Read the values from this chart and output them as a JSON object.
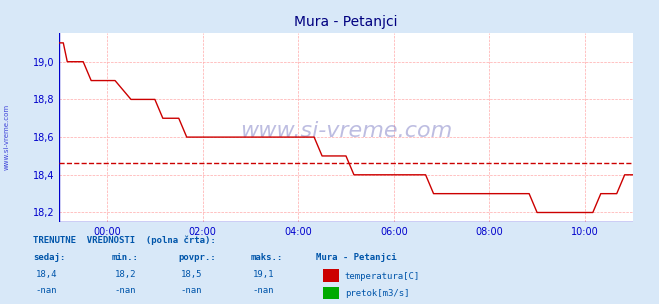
{
  "title": "Mura - Petanjci",
  "bg_color": "#d8e8f8",
  "plot_bg_color": "#ffffff",
  "grid_color": "#ffaaaa",
  "title_color": "#000080",
  "axis_color": "#0000cc",
  "text_color": "#0055aa",
  "watermark": "www.si-vreme.com",
  "ylim": [
    18.15,
    19.15
  ],
  "yticks": [
    18.2,
    18.4,
    18.6,
    18.8,
    19.0
  ],
  "xlim": [
    0,
    288
  ],
  "xtick_positions": [
    24,
    72,
    120,
    168,
    216,
    264
  ],
  "xtick_labels": [
    "00:00",
    "02:00",
    "04:00",
    "06:00",
    "08:00",
    "10:00"
  ],
  "avg_line_y": 18.463,
  "avg_line_color": "#cc0000",
  "line_color": "#cc0000",
  "temp_data_x": [
    0,
    2,
    4,
    6,
    8,
    10,
    12,
    16,
    20,
    24,
    28,
    36,
    44,
    48,
    52,
    56,
    60,
    64,
    68,
    72,
    76,
    80,
    84,
    88,
    92,
    96,
    100,
    108,
    116,
    120,
    124,
    128,
    132,
    136,
    140,
    144,
    148,
    152,
    156,
    160,
    164,
    168,
    172,
    176,
    180,
    184,
    188,
    192,
    196,
    200,
    204,
    208,
    212,
    216,
    220,
    224,
    228,
    232,
    236,
    240,
    244,
    248,
    252,
    256,
    260,
    264,
    268,
    272,
    276,
    280,
    284,
    288
  ],
  "temp_data_y": [
    19.1,
    19.1,
    19.0,
    19.0,
    19.0,
    19.0,
    19.0,
    18.9,
    18.9,
    18.9,
    18.9,
    18.8,
    18.8,
    18.8,
    18.7,
    18.7,
    18.7,
    18.6,
    18.6,
    18.6,
    18.6,
    18.6,
    18.6,
    18.6,
    18.6,
    18.6,
    18.6,
    18.6,
    18.6,
    18.6,
    18.6,
    18.6,
    18.5,
    18.5,
    18.5,
    18.5,
    18.4,
    18.4,
    18.4,
    18.4,
    18.4,
    18.4,
    18.4,
    18.4,
    18.4,
    18.4,
    18.3,
    18.3,
    18.3,
    18.3,
    18.3,
    18.3,
    18.3,
    18.3,
    18.3,
    18.3,
    18.3,
    18.3,
    18.3,
    18.2,
    18.2,
    18.2,
    18.2,
    18.2,
    18.2,
    18.2,
    18.2,
    18.3,
    18.3,
    18.3,
    18.4,
    18.4
  ],
  "sidebar_text": "www.si-vreme.com",
  "footer_label1": "TRENUTNE  VREDNOSTI  (polna črta):",
  "footer_col1": "sedaj:",
  "footer_col2": "min.:",
  "footer_col3": "povpr.:",
  "footer_col4": "maks.:",
  "footer_col5": "Mura - Petanjci",
  "footer_val1": [
    "18,4",
    "-nan"
  ],
  "footer_val2": [
    "18,2",
    "-nan"
  ],
  "footer_val3": [
    "18,5",
    "-nan"
  ],
  "footer_val4": [
    "19,1",
    "-nan"
  ],
  "legend1_color": "#cc0000",
  "legend2_color": "#00aa00",
  "legend1_label": "temperatura[C]",
  "legend2_label": "pretok[m3/s]"
}
